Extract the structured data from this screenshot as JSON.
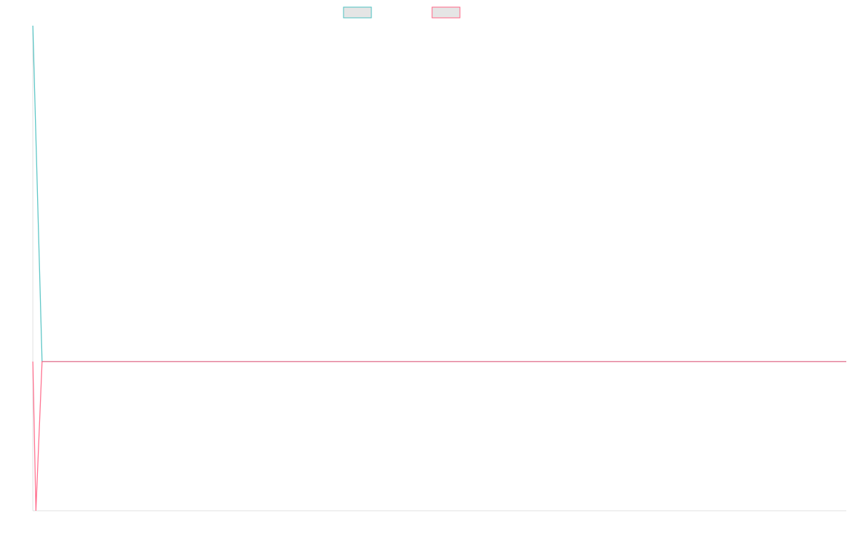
{
  "chart_data": {
    "type": "line",
    "title": "",
    "xlabel": "",
    "ylabel": "",
    "xlim": [
      0,
      264
    ],
    "ylim": [
      -44.4,
      100
    ],
    "grid": false,
    "legend_placement": "top",
    "series": [
      {
        "color": "#4bc0c0",
        "points": [
          [
            0,
            100
          ],
          [
            1,
            66.7
          ],
          [
            2,
            33.3
          ],
          [
            3,
            0
          ],
          [
            264,
            0
          ]
        ]
      },
      {
        "color": "#ff6384",
        "points": [
          [
            0,
            0
          ],
          [
            1,
            -44.4
          ],
          [
            2,
            -22.2
          ],
          [
            3,
            0
          ],
          [
            264,
            0
          ]
        ]
      }
    ],
    "axis_color": "#e0e0e0",
    "legend_fill": "#e5e5e5"
  }
}
